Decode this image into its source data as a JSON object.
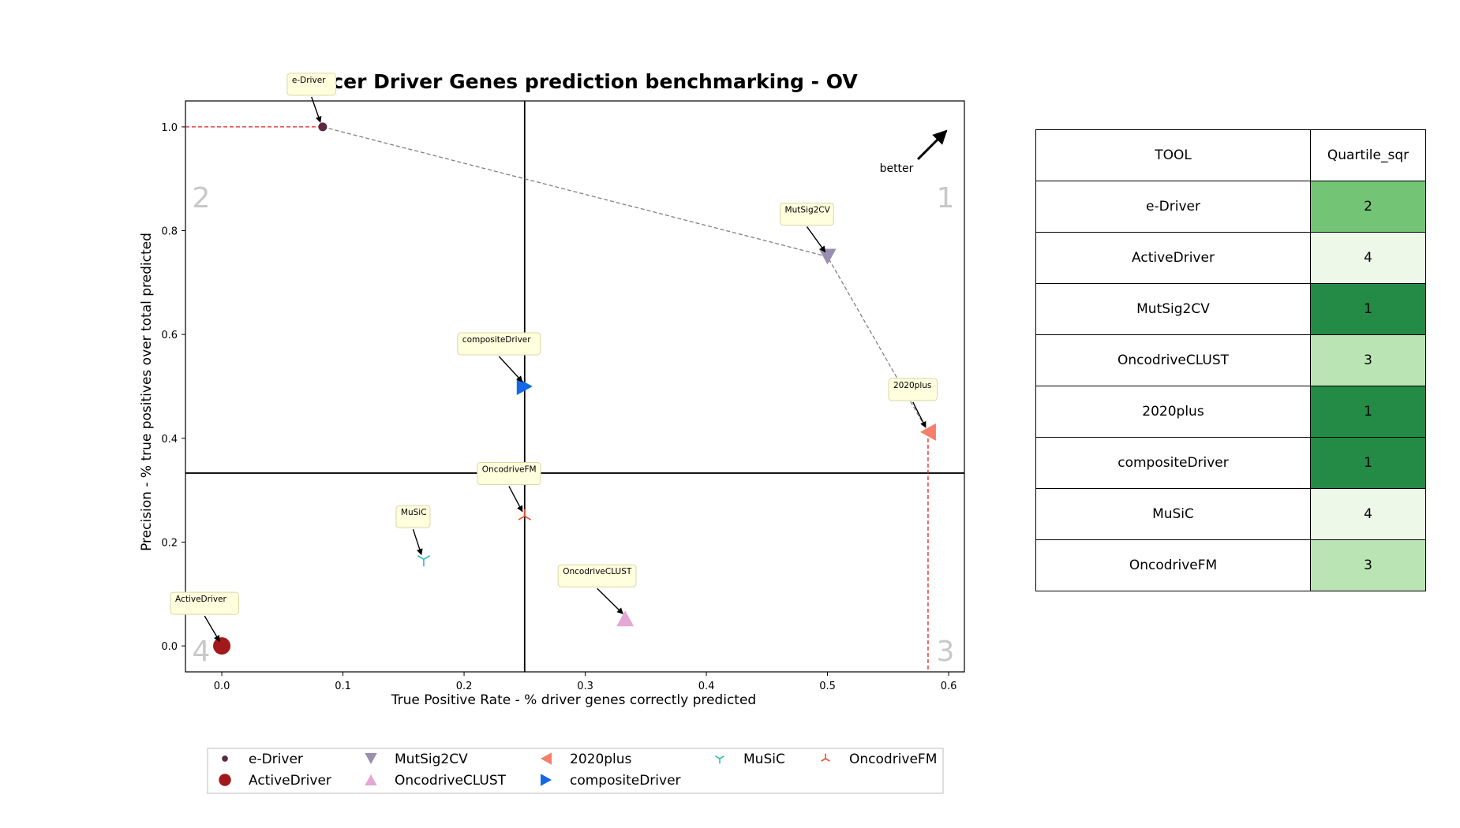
{
  "chart_data": {
    "type": "scatter",
    "title": "Cancer Driver Genes prediction benchmarking - OV",
    "xlabel": "True Positive Rate - % driver genes correctly predicted",
    "ylabel": "Precision - % true positives over total predicted",
    "xlim": [
      -0.03,
      0.613
    ],
    "ylim": [
      -0.05,
      1.05
    ],
    "xticks": [
      "0.0",
      "0.1",
      "0.2",
      "0.3",
      "0.4",
      "0.5",
      "0.6"
    ],
    "yticks": [
      "0.0",
      "0.2",
      "0.4",
      "0.6",
      "0.8",
      "1.0"
    ],
    "quadrant_lines": {
      "x": 0.25,
      "y": 0.333
    },
    "quadrant_labels": [
      "1",
      "2",
      "3",
      "4"
    ],
    "better_label": "better",
    "legend_position": "bottom-center",
    "pareto_front": [
      "e-Driver",
      "MutSig2CV",
      "2020plus"
    ],
    "points": [
      {
        "name": "e-Driver",
        "x": 0.0833,
        "y": 1.0,
        "color": "#5a2a42",
        "marker": "circle-small"
      },
      {
        "name": "ActiveDriver",
        "x": 0.0,
        "y": 0.0,
        "color": "#a3181b",
        "marker": "circle"
      },
      {
        "name": "MutSig2CV",
        "x": 0.5,
        "y": 0.75,
        "color": "#9a8fae",
        "marker": "triangle-down"
      },
      {
        "name": "OncodriveCLUST",
        "x": 0.333,
        "y": 0.053,
        "color": "#e4a7d6",
        "marker": "triangle-up"
      },
      {
        "name": "2020plus",
        "x": 0.583,
        "y": 0.412,
        "color": "#f4806b",
        "marker": "triangle-left"
      },
      {
        "name": "compositeDriver",
        "x": 0.25,
        "y": 0.5,
        "color": "#1368e8",
        "marker": "triangle-right"
      },
      {
        "name": "MuSiC",
        "x": 0.1667,
        "y": 0.167,
        "color": "#2dbfb3",
        "marker": "tri-down"
      },
      {
        "name": "OncodriveFM",
        "x": 0.25,
        "y": 0.25,
        "color": "#ef4a2f",
        "marker": "tri-up"
      }
    ]
  },
  "table": {
    "headers": [
      "TOOL",
      "Quartile_sqr"
    ],
    "rows": [
      {
        "tool": "e-Driver",
        "quartile": "2",
        "color": "#74c476"
      },
      {
        "tool": "ActiveDriver",
        "quartile": "4",
        "color": "#edf8e9"
      },
      {
        "tool": "MutSig2CV",
        "quartile": "1",
        "color": "#238b45"
      },
      {
        "tool": "OncodriveCLUST",
        "quartile": "3",
        "color": "#bae4b3"
      },
      {
        "tool": "2020plus",
        "quartile": "1",
        "color": "#238b45"
      },
      {
        "tool": "compositeDriver",
        "quartile": "1",
        "color": "#238b45"
      },
      {
        "tool": "MuSiC",
        "quartile": "4",
        "color": "#edf8e9"
      },
      {
        "tool": "OncodriveFM",
        "quartile": "3",
        "color": "#bae4b3"
      }
    ]
  }
}
